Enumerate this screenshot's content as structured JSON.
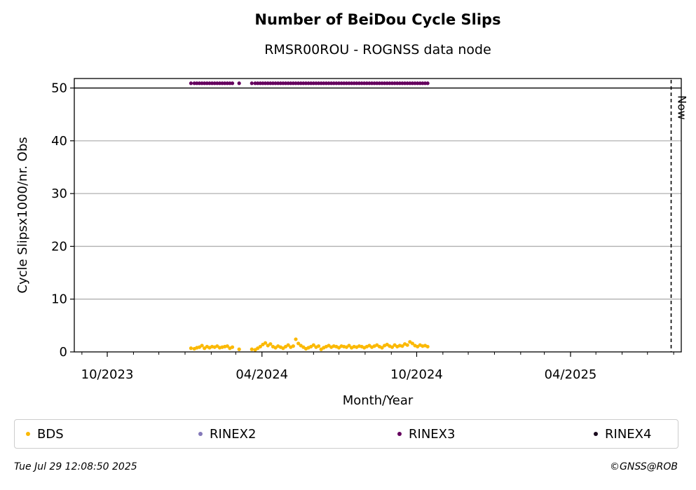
{
  "chart_data": {
    "type": "scatter",
    "title": "Number of BeiDou Cycle Slips",
    "subtitle": "RMSR00ROU - ROGNSS data node",
    "xlabel": "Month/Year",
    "ylabel": "Cycle Slipsx1000/nr. Obs",
    "ylim": [
      0,
      51.8
    ],
    "yticks": [
      0,
      10,
      20,
      30,
      40,
      50
    ],
    "xlim": [
      "2023-08-23",
      "2025-08-10"
    ],
    "xticks": [
      {
        "date": "2023-10-01",
        "label": "10/2023"
      },
      {
        "date": "2024-04-01",
        "label": "04/2024"
      },
      {
        "date": "2024-10-01",
        "label": "10/2024"
      },
      {
        "date": "2025-04-01",
        "label": "04/2025"
      }
    ],
    "minor_xticks": [
      "2023-09-01",
      "2023-11-01",
      "2023-12-01",
      "2024-01-01",
      "2024-02-01",
      "2024-03-01",
      "2024-05-01",
      "2024-06-01",
      "2024-07-01",
      "2024-08-01",
      "2024-09-01",
      "2024-11-01",
      "2024-12-01",
      "2025-01-01",
      "2025-02-01",
      "2025-03-01",
      "2025-05-01",
      "2025-06-01",
      "2025-07-01",
      "2025-08-01"
    ],
    "grid": "horizontal",
    "now": {
      "date": "2025-07-29",
      "label": "Now"
    },
    "cap_value": 50,
    "series": [
      {
        "name": "BDS",
        "color": "#fbb904",
        "x": [
          "2024-01-08",
          "2024-01-12",
          "2024-01-15",
          "2024-01-18",
          "2024-01-21",
          "2024-01-24",
          "2024-01-27",
          "2024-01-30",
          "2024-02-02",
          "2024-02-05",
          "2024-02-08",
          "2024-02-11",
          "2024-02-14",
          "2024-02-17",
          "2024-02-20",
          "2024-02-23",
          "2024-02-26",
          "2024-03-05",
          "2024-03-20",
          "2024-03-24",
          "2024-03-27",
          "2024-03-30",
          "2024-04-02",
          "2024-04-05",
          "2024-04-08",
          "2024-04-11",
          "2024-04-14",
          "2024-04-17",
          "2024-04-20",
          "2024-04-23",
          "2024-04-26",
          "2024-04-29",
          "2024-05-02",
          "2024-05-05",
          "2024-05-08",
          "2024-05-11",
          "2024-05-14",
          "2024-05-17",
          "2024-05-20",
          "2024-05-23",
          "2024-05-26",
          "2024-05-29",
          "2024-06-01",
          "2024-06-04",
          "2024-06-07",
          "2024-06-10",
          "2024-06-13",
          "2024-06-16",
          "2024-06-19",
          "2024-06-22",
          "2024-06-25",
          "2024-06-28",
          "2024-07-01",
          "2024-07-04",
          "2024-07-07",
          "2024-07-10",
          "2024-07-13",
          "2024-07-16",
          "2024-07-19",
          "2024-07-22",
          "2024-07-25",
          "2024-07-28",
          "2024-07-31",
          "2024-08-03",
          "2024-08-06",
          "2024-08-09",
          "2024-08-12",
          "2024-08-15",
          "2024-08-18",
          "2024-08-21",
          "2024-08-24",
          "2024-08-27",
          "2024-08-30",
          "2024-09-02",
          "2024-09-05",
          "2024-09-08",
          "2024-09-11",
          "2024-09-14",
          "2024-09-17",
          "2024-09-20",
          "2024-09-23",
          "2024-09-26",
          "2024-09-29",
          "2024-10-02",
          "2024-10-05",
          "2024-10-08",
          "2024-10-11",
          "2024-10-14"
        ],
        "y": [
          0.7,
          0.6,
          0.8,
          0.9,
          1.2,
          0.7,
          1.0,
          0.8,
          1.0,
          0.9,
          1.1,
          0.8,
          0.9,
          1.0,
          1.1,
          0.7,
          0.9,
          0.5,
          0.5,
          0.4,
          0.7,
          1.0,
          1.4,
          1.7,
          1.2,
          1.5,
          1.0,
          0.8,
          1.1,
          0.9,
          0.7,
          1.0,
          1.3,
          0.9,
          1.1,
          2.4,
          1.6,
          1.2,
          0.9,
          0.6,
          0.8,
          1.0,
          1.3,
          0.9,
          1.1,
          0.5,
          0.8,
          1.0,
          1.2,
          0.9,
          1.1,
          1.0,
          0.8,
          1.1,
          1.0,
          0.9,
          1.2,
          0.8,
          1.0,
          0.9,
          1.1,
          1.0,
          0.8,
          1.0,
          1.2,
          0.9,
          1.1,
          1.3,
          1.0,
          0.8,
          1.2,
          1.4,
          1.1,
          0.9,
          1.3,
          1.0,
          1.2,
          1.1,
          1.5,
          1.3,
          1.9,
          1.6,
          1.2,
          1.0,
          1.3,
          1.1,
          1.2,
          1.0
        ]
      },
      {
        "name": "RINEX2",
        "color": "#8479b9",
        "x": [],
        "y": []
      },
      {
        "name": "RINEX3",
        "color": "#65005e",
        "x": [
          "2024-01-08",
          "2024-01-12",
          "2024-01-15",
          "2024-01-18",
          "2024-01-21",
          "2024-01-24",
          "2024-01-27",
          "2024-01-30",
          "2024-02-02",
          "2024-02-05",
          "2024-02-08",
          "2024-02-11",
          "2024-02-14",
          "2024-02-17",
          "2024-02-20",
          "2024-02-23",
          "2024-02-26",
          "2024-03-05",
          "2024-03-20",
          "2024-03-24",
          "2024-03-27",
          "2024-03-30",
          "2024-04-02",
          "2024-04-05",
          "2024-04-08",
          "2024-04-11",
          "2024-04-14",
          "2024-04-17",
          "2024-04-20",
          "2024-04-23",
          "2024-04-26",
          "2024-04-29",
          "2024-05-02",
          "2024-05-05",
          "2024-05-08",
          "2024-05-11",
          "2024-05-14",
          "2024-05-17",
          "2024-05-20",
          "2024-05-23",
          "2024-05-26",
          "2024-05-29",
          "2024-06-01",
          "2024-06-04",
          "2024-06-07",
          "2024-06-10",
          "2024-06-13",
          "2024-06-16",
          "2024-06-19",
          "2024-06-22",
          "2024-06-25",
          "2024-06-28",
          "2024-07-01",
          "2024-07-04",
          "2024-07-07",
          "2024-07-10",
          "2024-07-13",
          "2024-07-16",
          "2024-07-19",
          "2024-07-22",
          "2024-07-25",
          "2024-07-28",
          "2024-07-31",
          "2024-08-03",
          "2024-08-06",
          "2024-08-09",
          "2024-08-12",
          "2024-08-15",
          "2024-08-18",
          "2024-08-21",
          "2024-08-24",
          "2024-08-27",
          "2024-08-30",
          "2024-09-02",
          "2024-09-05",
          "2024-09-08",
          "2024-09-11",
          "2024-09-14",
          "2024-09-17",
          "2024-09-20",
          "2024-09-23",
          "2024-09-26",
          "2024-09-29",
          "2024-10-02",
          "2024-10-05",
          "2024-10-08",
          "2024-10-11",
          "2024-10-14"
        ],
        "y": [
          50.9,
          50.9,
          50.9,
          50.9,
          50.9,
          50.9,
          50.9,
          50.9,
          50.9,
          50.9,
          50.9,
          50.9,
          50.9,
          50.9,
          50.9,
          50.9,
          50.9,
          50.9,
          50.9,
          50.9,
          50.9,
          50.9,
          50.9,
          50.9,
          50.9,
          50.9,
          50.9,
          50.9,
          50.9,
          50.9,
          50.9,
          50.9,
          50.9,
          50.9,
          50.9,
          50.9,
          50.9,
          50.9,
          50.9,
          50.9,
          50.9,
          50.9,
          50.9,
          50.9,
          50.9,
          50.9,
          50.9,
          50.9,
          50.9,
          50.9,
          50.9,
          50.9,
          50.9,
          50.9,
          50.9,
          50.9,
          50.9,
          50.9,
          50.9,
          50.9,
          50.9,
          50.9,
          50.9,
          50.9,
          50.9,
          50.9,
          50.9,
          50.9,
          50.9,
          50.9,
          50.9,
          50.9,
          50.9,
          50.9,
          50.9,
          50.9,
          50.9,
          50.9,
          50.9,
          50.9,
          50.9,
          50.9,
          50.9,
          50.9,
          50.9,
          50.9,
          50.9,
          50.9
        ]
      },
      {
        "name": "RINEX4",
        "color": "#1a0a1e",
        "x": [],
        "y": []
      }
    ],
    "legend": [
      "BDS",
      "RINEX2",
      "RINEX3",
      "RINEX4"
    ]
  },
  "footer": {
    "timestamp": "Tue Jul 29 12:08:50 2025",
    "credit": "©GNSS@ROB"
  }
}
